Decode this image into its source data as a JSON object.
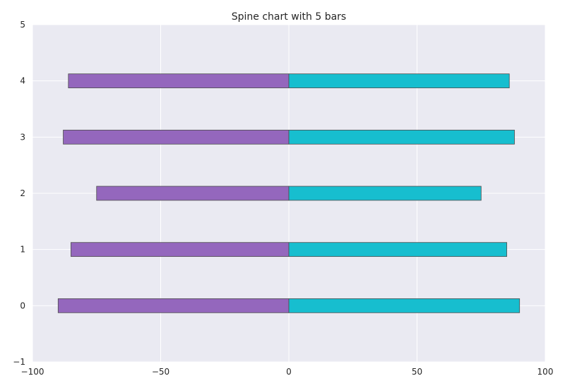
{
  "chart_data": {
    "type": "bar",
    "orientation": "horizontal",
    "title": "Spine chart with 5 bars",
    "xlabel": "",
    "ylabel": "",
    "categories": [
      0,
      1,
      2,
      3,
      4
    ],
    "series": [
      {
        "values": [
          -90,
          -85,
          -75,
          -88,
          -86
        ],
        "color": "#9467bd"
      },
      {
        "values": [
          90,
          85,
          75,
          88,
          86
        ],
        "color": "#17becf"
      }
    ],
    "xlim": [
      -100,
      100
    ],
    "ylim": [
      -1,
      5
    ],
    "xticks": [
      "−100",
      "−50",
      "0",
      "50",
      "100"
    ],
    "yticks": [
      "−1",
      "0",
      "1",
      "2",
      "3",
      "4",
      "5"
    ],
    "grid": true,
    "background": "#eaeaf2",
    "bar_edge_color": "#4d4d4d"
  }
}
